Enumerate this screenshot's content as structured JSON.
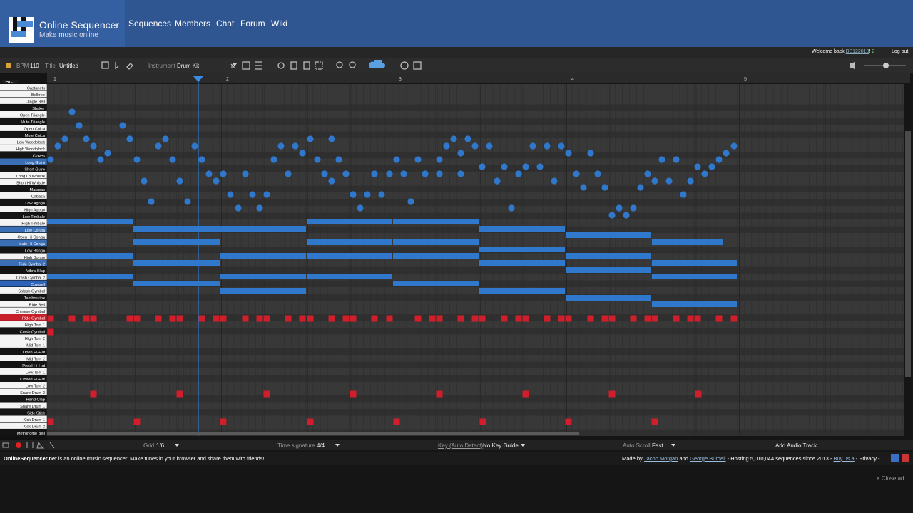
{
  "header": {
    "site_name": "Online Sequencer",
    "tagline": "Make music online",
    "nav": [
      "Sequences",
      "Members",
      "Chat",
      "Forum",
      "Wiki"
    ]
  },
  "user_bar": {
    "welcome": "Welcome back",
    "username": "BE122013",
    "points": "2",
    "logout": "Log out"
  },
  "toolbar": {
    "bpm_label": "BPM",
    "bpm": "110",
    "title_label": "Title",
    "title": "Untitled",
    "instrument_label": "Instrument",
    "instrument": "Drum Kit"
  },
  "ruler": [
    "1",
    "2",
    "3",
    "4",
    "5"
  ],
  "play": "Play",
  "keys": [
    "Castanets",
    "Belltree",
    "Jingle Bell",
    "Shaker",
    "Open Triangle",
    "Mute Triangle",
    "Open Cuica",
    "Mute Cuica",
    "Low Woodblock",
    "High Woodblock",
    "Claves",
    "Long Guiro",
    "Short Guiro",
    "Long Lo Whistle",
    "Short Hi Whistle",
    "Maracas",
    "Cabasa",
    "Low Agogo",
    "High Agogo",
    "Low Timbale",
    "High Timbale",
    "Low Conga",
    "Open Hi Conga",
    "Mute Hi Conga",
    "Low Bongo",
    "High Bongo",
    "Ride Cymbal 2",
    "Vibra-Slap",
    "Crash Cymbal 2",
    "Cowbell",
    "Splash Cymbal",
    "Tambourine",
    "Ride Bell",
    "Chinese Cymbal",
    "Ride Cymbal",
    "High Tom 1",
    "Crash Cymbal",
    "High Tom 2",
    "Mid Tom 1",
    "Open Hi-Hat",
    "Mid Tom 2",
    "Pedal Hi-Hat",
    "Low Tom 1",
    "Closed Hi-Hat",
    "Low Tom 2",
    "Snare Drum 2",
    "Hand Clap",
    "Snare Drum 1",
    "Side Stick",
    "Kick Drum 1",
    "Kick Drum 2",
    "Metronome Bell"
  ],
  "bottom_bar": {
    "grid_label": "Grid",
    "grid": "1/6",
    "time_signature_label": "Time signature",
    "time_signature": "4/4",
    "key_label": "Key (Auto Detect)",
    "key": "No Key Guide",
    "auto_scroll_label": "Auto Scroll",
    "auto_scroll": "Fast",
    "add_audio": "Add Audio Track"
  },
  "footer": {
    "intro_site": "OnlineSequencer.net",
    "intro": "is an online music sequencer. Make tunes in your browser and share them with friends!",
    "made_by": "Made by",
    "author1": "Jacob Morgan",
    "and": "and",
    "author2": "George Burdell",
    "hosting": "- Hosting 5,010,044 sequences since 2013 -",
    "buy": "Buy us a",
    "privacy": "- Privacy -",
    "close_ad": "Close ad"
  }
}
